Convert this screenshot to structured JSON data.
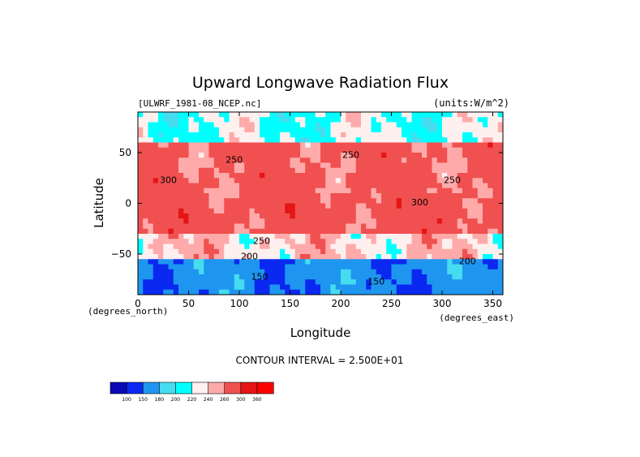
{
  "chart_data": {
    "type": "heatmap",
    "title": "Upward Longwave Radiation Flux",
    "subtitle_left": "[ULWRF_1981-08_NCEP.nc]",
    "subtitle_right": "(units:W/m^2)",
    "xlabel": "Longitude",
    "ylabel": "Latitude",
    "x_unit_note": "(degrees_east)",
    "y_unit_note": "(degrees_north)",
    "xlim": [
      0,
      360
    ],
    "ylim": [
      -90,
      90
    ],
    "x_ticks": [
      0,
      50,
      100,
      150,
      200,
      250,
      300,
      350
    ],
    "y_ticks": [
      -50,
      0,
      50
    ],
    "contour_interval_text": "CONTOUR INTERVAL = 2.500E+01",
    "contour_labels": [
      {
        "text": "250",
        "lon": 95,
        "lat": 40
      },
      {
        "text": "250",
        "lon": 210,
        "lat": 45
      },
      {
        "text": "250",
        "lon": 310,
        "lat": 20
      },
      {
        "text": "300",
        "lon": 30,
        "lat": 20
      },
      {
        "text": "300",
        "lon": 278,
        "lat": -2
      },
      {
        "text": "250",
        "lon": 122,
        "lat": -40
      },
      {
        "text": "200",
        "lon": 110,
        "lat": -55
      },
      {
        "text": "200",
        "lon": 325,
        "lat": -60
      },
      {
        "text": "150",
        "lon": 120,
        "lat": -75
      },
      {
        "text": "150",
        "lon": 235,
        "lat": -80
      }
    ],
    "colorbar": {
      "ticks": [
        "100",
        "150",
        "180",
        "200",
        "220",
        "240",
        "260",
        "300",
        "360"
      ],
      "colors": [
        "#0a0ab4",
        "#0a28f0",
        "#1e96f0",
        "#46dcf0",
        "#00ffff",
        "#fff0f0",
        "#ffaaaa",
        "#f05050",
        "#e61414",
        "#ff0000"
      ]
    },
    "field_summary": [
      {
        "lat_band": [
          60,
          90
        ],
        "typical_value": 220
      },
      {
        "lat_band": [
          10,
          60
        ],
        "typical_value": 270
      },
      {
        "lat_band": [
          -30,
          10
        ],
        "typical_value": 275
      },
      {
        "lat_band": [
          -55,
          -30
        ],
        "typical_value": 240
      },
      {
        "lat_band": [
          -90,
          -55
        ],
        "typical_value": 160
      }
    ]
  }
}
